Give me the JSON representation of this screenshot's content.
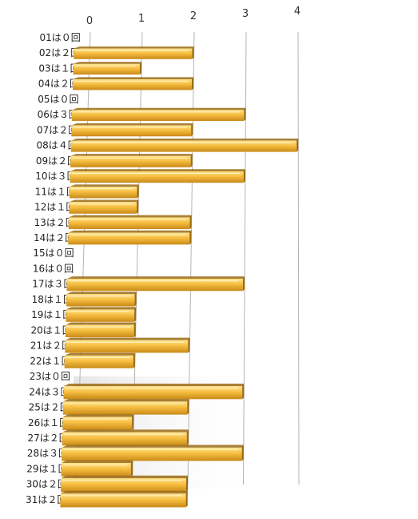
{
  "chart_data": {
    "type": "bar",
    "orientation": "horizontal",
    "style": "3d",
    "categories": [
      "01は０回",
      "02は２回",
      "03は１回",
      "04は２回",
      "05は０回",
      "06は３回",
      "07は２回",
      "08は４回",
      "09は２回",
      "10は３回",
      "11は１回",
      "12は１回",
      "13は２回",
      "14は２回",
      "15は０回",
      "16は０回",
      "17は３回",
      "18は１回",
      "19は１回",
      "20は１回",
      "21は２回",
      "22は１回",
      "23は０回",
      "24は３回",
      "25は２回",
      "26は１回",
      "27は２回",
      "28は３回",
      "29は１回",
      "30は２回",
      "31は２回"
    ],
    "values": [
      0,
      2,
      1,
      2,
      0,
      3,
      2,
      4,
      2,
      3,
      1,
      1,
      2,
      2,
      0,
      0,
      3,
      1,
      1,
      1,
      2,
      1,
      0,
      3,
      2,
      1,
      2,
      3,
      1,
      2,
      2
    ],
    "xlim": [
      0,
      4
    ],
    "x_ticks": [
      "0",
      "1",
      "2",
      "3",
      "4"
    ],
    "grid": true,
    "colors": {
      "bar_top": "#ffe27a",
      "bar_face": "#f4b63a",
      "bar_side": "#9a6a12",
      "grid": "#b4b4b4"
    }
  }
}
